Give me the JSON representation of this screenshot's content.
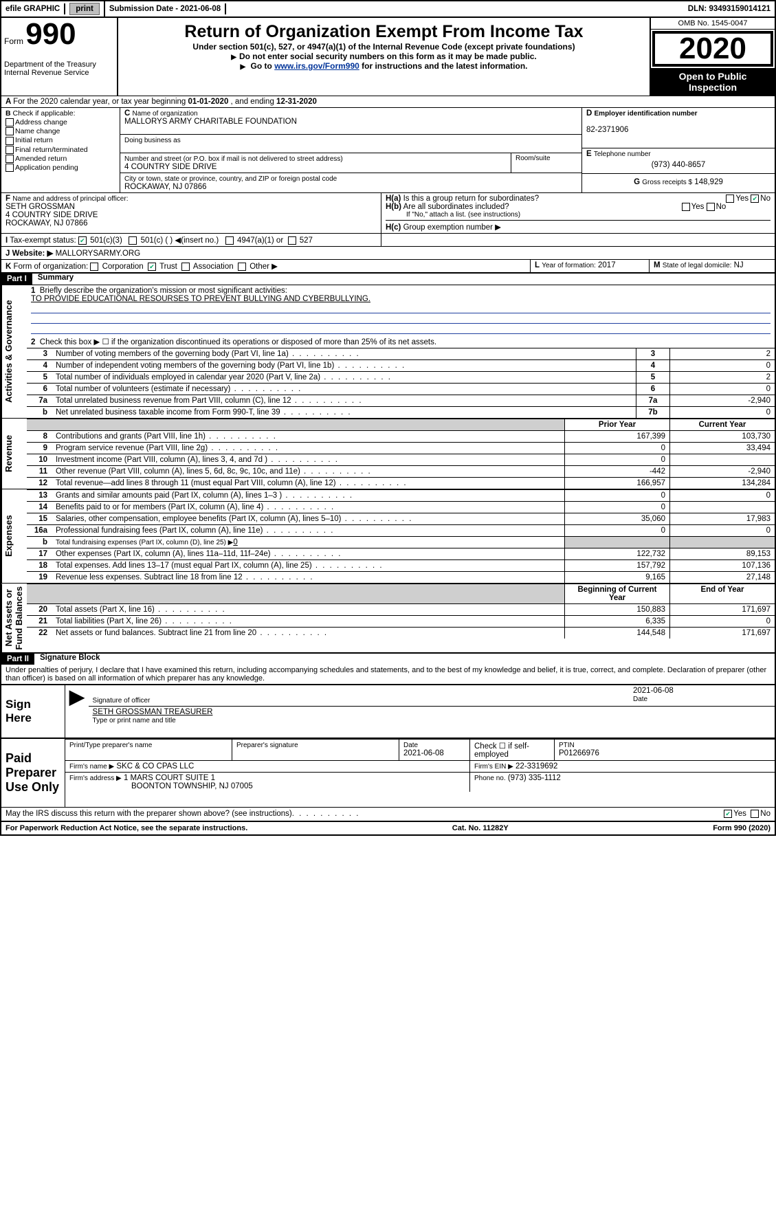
{
  "topbar": {
    "efile": "efile GRAPHIC",
    "print": "print",
    "subdate_label": "Submission Date - ",
    "subdate": "2021-06-08",
    "dln_label": "DLN: ",
    "dln": "93493159014121"
  },
  "header": {
    "form_label": "Form",
    "form_no": "990",
    "dept": "Department of the Treasury\nInternal Revenue Service",
    "title": "Return of Organization Exempt From Income Tax",
    "sub1": "Under section 501(c), 527, or 4947(a)(1) of the Internal Revenue Code (except private foundations)",
    "sub2": "Do not enter social security numbers on this form as it may be made public.",
    "sub3_pre": "Go to ",
    "sub3_link": "www.irs.gov/Form990",
    "sub3_post": " for instructions and the latest information.",
    "omb": "OMB No. 1545-0047",
    "year": "2020",
    "open": "Open to Public\nInspection"
  },
  "A": {
    "line": "For the 2020 calendar year, or tax year beginning ",
    "begin": "01-01-2020",
    "mid": " , and ending ",
    "end": "12-31-2020"
  },
  "B": {
    "label": "Check if applicable:",
    "opts": [
      "Address change",
      "Name change",
      "Initial return",
      "Final return/terminated",
      "Amended return",
      "Application pending"
    ]
  },
  "C": {
    "name_label": "Name of organization",
    "name": "MALLORYS ARMY CHARITABLE FOUNDATION",
    "dba_label": "Doing business as",
    "addr_label": "Number and street (or P.O. box if mail is not delivered to street address)",
    "room_label": "Room/suite",
    "addr": "4 COUNTRY SIDE DRIVE",
    "city_label": "City or town, state or province, country, and ZIP or foreign postal code",
    "city": "ROCKAWAY, NJ  07866"
  },
  "D": {
    "label": "Employer identification number",
    "value": "82-2371906"
  },
  "E": {
    "label": "Telephone number",
    "value": "(973) 440-8657"
  },
  "G": {
    "label": "Gross receipts $",
    "value": "148,929"
  },
  "F": {
    "label": "Name and address of principal officer:",
    "name": "SETH GROSSMAN",
    "addr1": "4 COUNTRY SIDE DRIVE",
    "addr2": "ROCKAWAY, NJ  07866"
  },
  "H": {
    "a": "Is this a group return for subordinates?",
    "b": "Are all subordinates included?",
    "b_note": "If \"No,\" attach a list. (see instructions)",
    "c": "Group exemption number ▶",
    "ha_no": true
  },
  "I": {
    "label": "Tax-exempt status:",
    "opts": [
      "501(c)(3)",
      "501(c) (  ) ◀(insert no.)",
      "4947(a)(1) or",
      "527"
    ],
    "checked": 0
  },
  "J": {
    "label": "Website: ▶",
    "value": "MALLORYSARMY.ORG"
  },
  "K": {
    "label": "Form of organization:",
    "opts": [
      "Corporation",
      "Trust",
      "Association",
      "Other ▶"
    ],
    "checked": 1
  },
  "L": {
    "label": "Year of formation:",
    "value": "2017"
  },
  "M": {
    "label": "State of legal domicile:",
    "value": "NJ"
  },
  "part1": {
    "bar": "Part I",
    "title": "Summary",
    "sections": {
      "gov": "Activities & Governance",
      "rev": "Revenue",
      "exp": "Expenses",
      "net": "Net Assets or\nFund Balances"
    },
    "l1": "Briefly describe the organization's mission or most significant activities:",
    "l1v": "TO PROVIDE EDUCATIONAL RESOURSES TO PREVENT BULLYING AND CYBERBULLYING.",
    "l2": "Check this box ▶ ☐  if the organization discontinued its operations or disposed of more than 25% of its net assets.",
    "lines_single": [
      {
        "n": "3",
        "t": "Number of voting members of the governing body (Part VI, line 1a)",
        "box": "3",
        "v": "2"
      },
      {
        "n": "4",
        "t": "Number of independent voting members of the governing body (Part VI, line 1b)",
        "box": "4",
        "v": "0"
      },
      {
        "n": "5",
        "t": "Total number of individuals employed in calendar year 2020 (Part V, line 2a)",
        "box": "5",
        "v": "2"
      },
      {
        "n": "6",
        "t": "Total number of volunteers (estimate if necessary)",
        "box": "6",
        "v": "0"
      },
      {
        "n": "7a",
        "t": "Total unrelated business revenue from Part VIII, column (C), line 12",
        "box": "7a",
        "v": "-2,940"
      },
      {
        "n": "b",
        "t": "Net unrelated business taxable income from Form 990-T, line 39",
        "box": "7b",
        "v": "0"
      }
    ],
    "col_head_prior": "Prior Year",
    "col_head_curr": "Current Year",
    "lines_rev": [
      {
        "n": "8",
        "t": "Contributions and grants (Part VIII, line 1h)",
        "p": "167,399",
        "c": "103,730"
      },
      {
        "n": "9",
        "t": "Program service revenue (Part VIII, line 2g)",
        "p": "0",
        "c": "33,494"
      },
      {
        "n": "10",
        "t": "Investment income (Part VIII, column (A), lines 3, 4, and 7d )",
        "p": "0",
        "c": ""
      },
      {
        "n": "11",
        "t": "Other revenue (Part VIII, column (A), lines 5, 6d, 8c, 9c, 10c, and 11e)",
        "p": "-442",
        "c": "-2,940"
      },
      {
        "n": "12",
        "t": "Total revenue—add lines 8 through 11 (must equal Part VIII, column (A), line 12)",
        "p": "166,957",
        "c": "134,284"
      }
    ],
    "lines_exp": [
      {
        "n": "13",
        "t": "Grants and similar amounts paid (Part IX, column (A), lines 1–3 )",
        "p": "0",
        "c": "0"
      },
      {
        "n": "14",
        "t": "Benefits paid to or for members (Part IX, column (A), line 4)",
        "p": "0",
        "c": ""
      },
      {
        "n": "15",
        "t": "Salaries, other compensation, employee benefits (Part IX, column (A), lines 5–10)",
        "p": "35,060",
        "c": "17,983"
      },
      {
        "n": "16a",
        "t": "Professional fundraising fees (Part IX, column (A), line 11e)",
        "p": "0",
        "c": "0"
      }
    ],
    "l16b_t": "Total fundraising expenses (Part IX, column (D), line 25) ▶",
    "l16b_v": "0",
    "lines_exp2": [
      {
        "n": "17",
        "t": "Other expenses (Part IX, column (A), lines 11a–11d, 11f–24e)",
        "p": "122,732",
        "c": "89,153"
      },
      {
        "n": "18",
        "t": "Total expenses. Add lines 13–17 (must equal Part IX, column (A), line 25)",
        "p": "157,792",
        "c": "107,136"
      },
      {
        "n": "19",
        "t": "Revenue less expenses. Subtract line 18 from line 12",
        "p": "9,165",
        "c": "27,148"
      }
    ],
    "col_head_beg": "Beginning of Current Year",
    "col_head_end": "End of Year",
    "lines_net": [
      {
        "n": "20",
        "t": "Total assets (Part X, line 16)",
        "p": "150,883",
        "c": "171,697"
      },
      {
        "n": "21",
        "t": "Total liabilities (Part X, line 26)",
        "p": "6,335",
        "c": "0"
      },
      {
        "n": "22",
        "t": "Net assets or fund balances. Subtract line 21 from line 20",
        "p": "144,548",
        "c": "171,697"
      }
    ]
  },
  "part2": {
    "bar": "Part II",
    "title": "Signature Block",
    "decl": "Under penalties of perjury, I declare that I have examined this return, including accompanying schedules and statements, and to the best of my knowledge and belief, it is true, correct, and complete. Declaration of preparer (other than officer) is based on all information of which preparer has any knowledge.",
    "sign_here": "Sign\nHere",
    "sig_officer": "Signature of officer",
    "sig_date": "2021-06-08",
    "date_l": "Date",
    "printed": "SETH GROSSMAN  TREASURER",
    "printed_l": "Type or print name and title",
    "paid": "Paid\nPreparer\nUse Only",
    "prep_name_l": "Print/Type preparer's name",
    "prep_sig_l": "Preparer's signature",
    "prep_date_l": "Date",
    "prep_date": "2021-06-08",
    "prep_check_l": "Check ☐ if self-employed",
    "ptin_l": "PTIN",
    "ptin": "P01266976",
    "firm_l": "Firm's name    ▶",
    "firm": "SKC & CO CPAS LLC",
    "ein_l": "Firm's EIN ▶",
    "ein": "22-3319692",
    "faddr_l": "Firm's address ▶",
    "faddr1": "1 MARS COURT SUITE 1",
    "faddr2": "BOONTON TOWNSHIP, NJ  07005",
    "phone_l": "Phone no.",
    "phone": "(973) 335-1112",
    "discuss": "May the IRS discuss this return with the preparer shown above? (see instructions)",
    "discuss_yes": true
  },
  "footer": {
    "pra": "For Paperwork Reduction Act Notice, see the separate instructions.",
    "cat": "Cat. No. 11282Y",
    "form": "Form 990 (2020)"
  }
}
